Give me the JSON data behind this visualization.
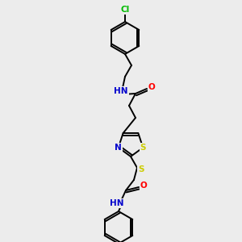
{
  "bg_color": "#ececec",
  "atom_colors": {
    "C": "#000000",
    "N": "#0000cc",
    "O": "#ff0000",
    "S": "#cccc00",
    "Cl": "#00bb00",
    "H": "#000000"
  },
  "bond_color": "#000000",
  "bond_width": 1.4,
  "figsize": [
    3.0,
    3.0
  ],
  "dpi": 100,
  "font_size": 7.5
}
